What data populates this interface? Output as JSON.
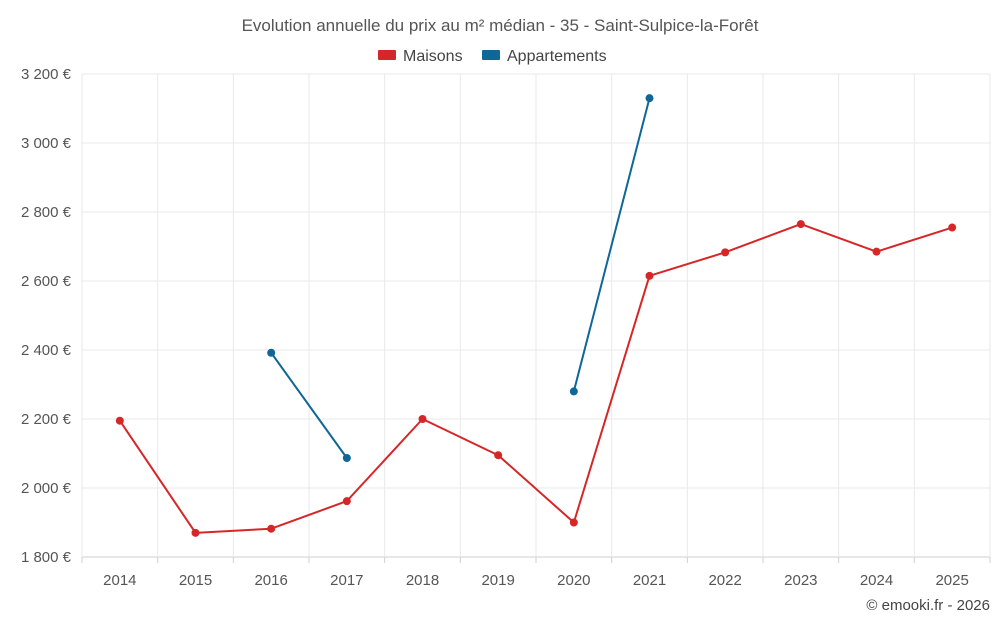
{
  "chart_data": {
    "type": "line",
    "title": "Evolution annuelle du prix au m² médian - 35 - Saint-Sulpice-la-Forêt",
    "categories": [
      "2014",
      "2015",
      "2016",
      "2017",
      "2018",
      "2019",
      "2020",
      "2021",
      "2022",
      "2023",
      "2024",
      "2025"
    ],
    "ylim": [
      1800,
      3200
    ],
    "yticks": [
      1800,
      2000,
      2200,
      2400,
      2600,
      2800,
      3000,
      3200
    ],
    "ytick_labels": [
      "1 800 €",
      "2 000 €",
      "2 200 €",
      "2 400 €",
      "2 600 €",
      "2 800 €",
      "3 000 €",
      "3 200 €"
    ],
    "grid": true,
    "legend_position": "top-center",
    "series": [
      {
        "name": "Maisons",
        "color": "#d62728",
        "values": [
          2195,
          1870,
          1882,
          1962,
          2200,
          2095,
          1900,
          2615,
          2683,
          2765,
          2685,
          2755
        ]
      },
      {
        "name": "Appartements",
        "color": "#0e6796",
        "values": [
          null,
          null,
          2392,
          2087,
          null,
          null,
          2280,
          3130,
          null,
          null,
          null,
          null
        ]
      }
    ],
    "credit": "© emooki.fr - 2026"
  }
}
